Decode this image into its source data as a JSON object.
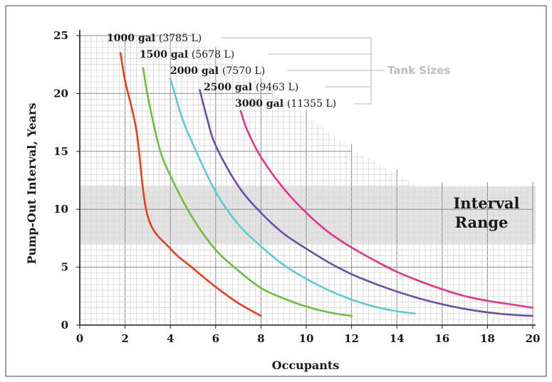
{
  "chart_data": {
    "type": "line",
    "xlabel": "Occupants",
    "ylabel": "Pump-Out Interval, Years",
    "xlim": [
      0,
      20
    ],
    "ylim": [
      0,
      25
    ],
    "x_ticks": [
      "0",
      "2",
      "4",
      "6",
      "8",
      "10",
      "12",
      "14",
      "16",
      "18",
      "20"
    ],
    "y_ticks": [
      "0",
      "5",
      "10",
      "15",
      "20",
      "25"
    ],
    "grid": true,
    "legend_title": "Tank Sizes",
    "band": {
      "label_line1": "Interval",
      "label_line2": "Range",
      "y_range": [
        7,
        12
      ]
    },
    "series": [
      {
        "name_bold": "1000 gal",
        "name_rest": "(3785 L)",
        "color": "#e8401c",
        "x": [
          1.8,
          2,
          2.5,
          3,
          4,
          5,
          6,
          7,
          8
        ],
        "y": [
          23.5,
          21.1,
          16.8,
          9.4,
          6.6,
          4.9,
          3.3,
          1.9,
          0.8
        ]
      },
      {
        "name_bold": "1500 gal",
        "name_rest": "(5678 L)",
        "color": "#6cbf3c",
        "x": [
          2.8,
          3,
          3.5,
          4,
          5,
          6,
          7,
          8,
          9,
          10,
          11,
          12
        ],
        "y": [
          22.2,
          19.8,
          15.4,
          12.9,
          9.2,
          6.5,
          4.7,
          3.2,
          2.3,
          1.6,
          1.1,
          0.8
        ]
      },
      {
        "name_bold": "2000 gal",
        "name_rest": "(7570 L)",
        "color": "#5ccbd8",
        "x": [
          4,
          4.5,
          5,
          6,
          7,
          8,
          9,
          10,
          11,
          12,
          13,
          14,
          14.8
        ],
        "y": [
          21.3,
          18.0,
          15.6,
          11.5,
          8.7,
          6.8,
          5.2,
          4.0,
          3.0,
          2.2,
          1.6,
          1.2,
          1.0
        ]
      },
      {
        "name_bold": "2500 gal",
        "name_rest": "(9463 L)",
        "color": "#6a4eab",
        "x": [
          5.3,
          5.6,
          6,
          7,
          8,
          9,
          10,
          11,
          12,
          13,
          14,
          15,
          16,
          17,
          18,
          19,
          20
        ],
        "y": [
          20.3,
          18.0,
          15.5,
          12.0,
          9.7,
          7.9,
          6.6,
          5.4,
          4.4,
          3.6,
          2.9,
          2.3,
          1.8,
          1.4,
          1.1,
          0.9,
          0.8
        ]
      },
      {
        "name_bold": "3000 gal",
        "name_rest": "(11355 L)",
        "color": "#e8338a",
        "x": [
          7.1,
          7.4,
          8,
          9,
          10,
          11,
          12,
          13,
          14,
          15,
          16,
          17,
          18,
          19,
          20
        ],
        "y": [
          18.5,
          16.8,
          14.5,
          11.8,
          9.7,
          8.0,
          6.7,
          5.6,
          4.6,
          3.8,
          3.1,
          2.5,
          2.1,
          1.8,
          1.5
        ]
      }
    ]
  }
}
